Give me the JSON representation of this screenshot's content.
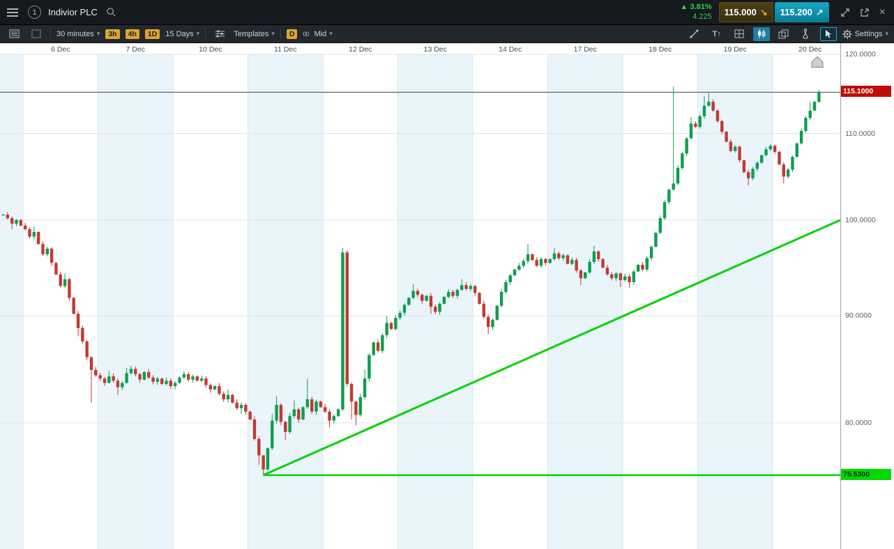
{
  "window": {
    "link_number": "1",
    "title": "Indivior PLC",
    "change_percent": "3.81%",
    "change_value": "4.225",
    "sell_price": "115.000",
    "buy_price": "115.200"
  },
  "toolbar": {
    "interval_label": "30 minutes",
    "quick_intervals": [
      "3h",
      "4h",
      "1D"
    ],
    "range_label": "15 Days",
    "templates_label": "Templates",
    "drawing_badge": "D",
    "price_mode_label": "Mid",
    "settings_label": "Settings"
  },
  "icons": {
    "caret-down-icon": "▾",
    "change-up-icon": "▲",
    "sell-arrow-icon": "↘",
    "buy-arrow-icon": "↗",
    "close-icon": "×",
    "text-tool-icon": "T↑",
    "price-scale-icon": "00"
  },
  "chart_data": {
    "type": "candlestick",
    "symbol": "Indivior PLC",
    "interval": "30 minutes",
    "range": "15 Days",
    "price_scale": "logarithmic",
    "colors": {
      "up": "#0f9d4f",
      "down": "#c23a31",
      "trendline": "#00d300",
      "price_line_badge": "#bf0d06",
      "support_badge": "#00d900"
    },
    "y_axis": {
      "ticks": [
        120,
        110,
        100,
        90,
        80
      ],
      "tick_labels": [
        "120.0000",
        "110.0000",
        "100.0000",
        "90.0000",
        "80.0000"
      ]
    },
    "price_line": {
      "value": 115.1,
      "label": "115.1000"
    },
    "support_line": {
      "value": 75.53,
      "label": "75.5300"
    },
    "trendline": {
      "from_date": "11 Dec",
      "from_price": 75.53,
      "to_price_at_right_edge": 100
    },
    "candle_encoding": "close | [close, high, low]",
    "days": [
      {
        "date": "",
        "candles": [
          100.6,
          100.2,
          [
            99.6,
            null,
            99.0
          ],
          100.0,
          99.4
        ]
      },
      {
        "date": "6 Dec",
        "candles": [
          99.0,
          98.2,
          [
            98.7,
            99.3,
            null
          ],
          97.4,
          96.3,
          96.9,
          95.4,
          94.2,
          93.0,
          [
            93.7,
            94.3,
            null
          ],
          91.8,
          90.2,
          [
            88.8,
            null,
            88.0
          ],
          87.5,
          86.0,
          [
            84.8,
            null,
            81.8
          ],
          84.3
        ]
      },
      {
        "date": "7 Dec",
        "candles": [
          84.0,
          83.6,
          [
            84.2,
            84.7,
            null
          ],
          83.8,
          [
            83.2,
            null,
            82.5
          ],
          83.6,
          [
            84.5,
            85.0,
            null
          ],
          84.9,
          84.4,
          83.9,
          84.6,
          84.1,
          83.7,
          84.0,
          83.5,
          83.8,
          83.3
        ]
      },
      {
        "date": "10 Dec",
        "candles": [
          83.6,
          84.1,
          84.4,
          83.9,
          84.2,
          83.8,
          84.0,
          83.4,
          83.0,
          83.3,
          82.6,
          82.1,
          [
            82.5,
            83.0,
            null
          ],
          81.8,
          81.3,
          [
            81.6,
            null,
            80.8
          ],
          81.0
        ]
      },
      {
        "date": "11 Dec",
        "candles": [
          80.3,
          78.6,
          [
            77.2,
            null,
            76.4
          ],
          [
            76.0,
            76.6,
            75.53
          ],
          77.8,
          [
            80.2,
            80.8,
            null
          ],
          [
            81.6,
            82.4,
            null
          ],
          80.1,
          [
            79.2,
            null,
            78.5
          ],
          80.6,
          [
            81.2,
            82.0,
            null
          ],
          80.3,
          81.4,
          [
            82.1,
            84.0,
            null
          ],
          81.0,
          81.9,
          81.4
        ]
      },
      {
        "date": "12 Dec",
        "candles": [
          81.0,
          [
            80.2,
            null,
            79.6
          ],
          80.6,
          81.2,
          [
            96.5,
            97.0,
            null
          ],
          83.5,
          [
            81.9,
            null,
            80.3
          ],
          [
            80.7,
            null,
            79.8
          ],
          82.3,
          [
            84.0,
            84.8,
            null
          ],
          86.2,
          87.4,
          86.6,
          88.1,
          [
            89.3,
            90.0,
            null
          ],
          88.7,
          89.8
        ]
      },
      {
        "date": "13 Dec",
        "candles": [
          90.3,
          91.1,
          91.8,
          [
            92.5,
            93.2,
            null
          ],
          92.1,
          91.5,
          92.0,
          [
            90.9,
            null,
            90.2
          ],
          90.4,
          91.2,
          91.9,
          92.4,
          92.0,
          92.6,
          [
            93.1,
            93.7,
            null
          ],
          92.7,
          93.0
        ]
      },
      {
        "date": "14 Dec",
        "candles": [
          92.3,
          91.2,
          89.9,
          [
            88.9,
            null,
            88.2
          ],
          89.6,
          91.0,
          92.4,
          93.4,
          94.1,
          94.7,
          95.1,
          95.6,
          [
            96.3,
            97.4,
            null
          ],
          95.7,
          95.1,
          95.8,
          95.4
        ]
      },
      {
        "date": "17 Dec",
        "candles": [
          95.8,
          [
            96.4,
            97.0,
            null
          ],
          95.9,
          96.2,
          95.3,
          95.7,
          94.6,
          [
            93.8,
            null,
            93.1
          ],
          94.4,
          95.5,
          [
            96.6,
            97.2,
            null
          ],
          95.8,
          94.9,
          94.2,
          93.8,
          94.3,
          [
            93.6,
            null,
            92.9
          ]
        ]
      },
      {
        "date": "18 Dec",
        "candles": [
          94.0,
          [
            93.4,
            null,
            92.8
          ],
          94.5,
          95.2,
          94.7,
          95.9,
          97.1,
          98.6,
          100.2,
          102.0,
          103.4,
          [
            104.1,
            115.8,
            null
          ],
          105.9,
          107.6,
          109.4,
          [
            111.2,
            112.0,
            null
          ],
          110.8
        ]
      },
      {
        "date": "19 Dec",
        "candles": [
          112.1,
          [
            113.4,
            114.6,
            null
          ],
          [
            113.9,
            115.0,
            null
          ],
          112.8,
          111.5,
          110.2,
          109.0,
          107.9,
          108.4,
          106.8,
          105.4,
          [
            104.7,
            null,
            103.9
          ],
          105.8,
          106.5,
          107.4,
          108.1,
          108.5
        ]
      },
      {
        "date": "20 Dec",
        "candles": [
          107.8,
          106.3,
          [
            104.9,
            null,
            104.1
          ],
          105.7,
          107.2,
          108.8,
          110.3,
          111.9,
          [
            112.8,
            113.9,
            null
          ],
          113.9,
          [
            115.1,
            115.4,
            null
          ]
        ]
      }
    ]
  }
}
